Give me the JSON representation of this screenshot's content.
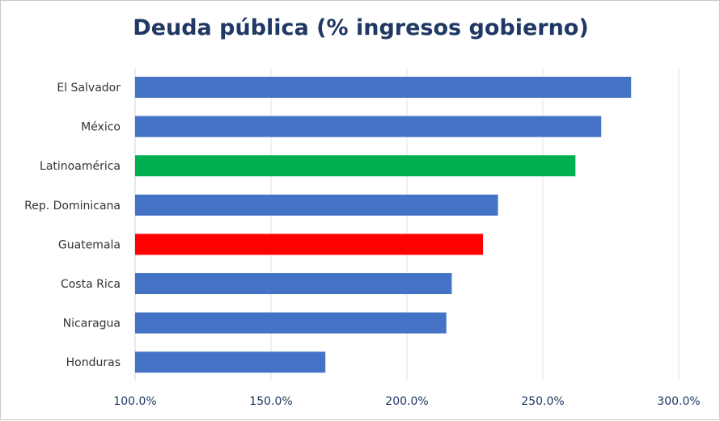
{
  "chart_data": {
    "type": "bar",
    "orientation": "horizontal",
    "title": "Deuda pública (% ingresos gobierno)",
    "xlabel": "",
    "ylabel": "",
    "categories": [
      "El Salvador",
      "México",
      "Latinoamérica",
      "Rep. Dominicana",
      "Guatemala",
      "Costa Rica",
      "Nicaragua",
      "Honduras"
    ],
    "values": [
      282.5,
      271.5,
      262.0,
      233.5,
      228.0,
      216.5,
      214.5,
      170.0
    ],
    "colors": [
      "#4472c4",
      "#4472c4",
      "#00b050",
      "#4472c4",
      "#ff0000",
      "#4472c4",
      "#4472c4",
      "#4472c4"
    ],
    "xlim": [
      100,
      300
    ],
    "xticks": [
      100,
      150,
      200,
      250,
      300
    ],
    "xtick_labels": [
      "100.0%",
      "150.0%",
      "200.0%",
      "250.0%",
      "300.0%"
    ],
    "grid": true,
    "legend": "none"
  }
}
